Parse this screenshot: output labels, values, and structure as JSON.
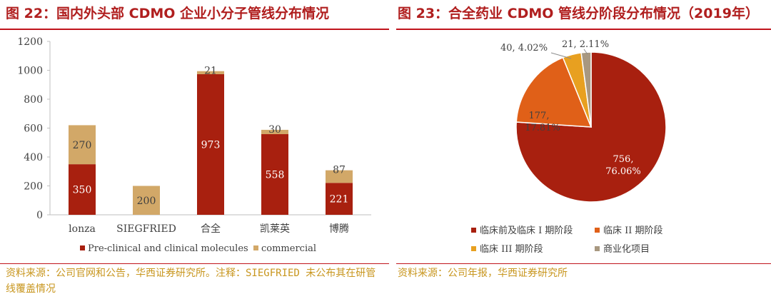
{
  "left": {
    "title": "图 22：国内外头部 CDMO 企业小分子管线分布情况",
    "source": "资料来源：公司官网和公告，华西证券研究所。注释：SIEGFRIED 未公布其在研管线覆盖情况"
  },
  "right": {
    "title": "图 23：合全药业 CDMO 管线分阶段分布情况（2019年）",
    "source": "资料来源：公司年报，华西证券研究所"
  },
  "chart_data": [
    {
      "type": "bar",
      "stacked": true,
      "categories": [
        "lonza",
        "SIEGFRIED",
        "合全",
        "凯莱英",
        "博腾"
      ],
      "series": [
        {
          "name": "Pre-clinical and clinical molecules",
          "values": [
            350,
            null,
            973,
            558,
            221
          ],
          "color": "#a8200f"
        },
        {
          "name": "commercial",
          "values": [
            270,
            200,
            21,
            30,
            87
          ],
          "color": "#d2a868"
        }
      ],
      "ylim": [
        0,
        1200
      ],
      "yticks": [
        0,
        200,
        400,
        600,
        800,
        1000,
        1200
      ],
      "legend": "bottom",
      "grid": false
    },
    {
      "type": "pie",
      "slices": [
        {
          "label": "临床前及临床 I 期阶段",
          "value": 756,
          "percent": "76.06%",
          "color": "#a8200f"
        },
        {
          "label": "临床 II 期阶段",
          "value": 177,
          "percent": "17.81%",
          "color": "#e06018"
        },
        {
          "label": "临床 III 期阶段",
          "value": 40,
          "percent": "4.02%",
          "color": "#e8a020"
        },
        {
          "label": "商业化项目",
          "value": 21,
          "percent": "2.11%",
          "color": "#a89880"
        }
      ],
      "legend": "bottom"
    }
  ]
}
